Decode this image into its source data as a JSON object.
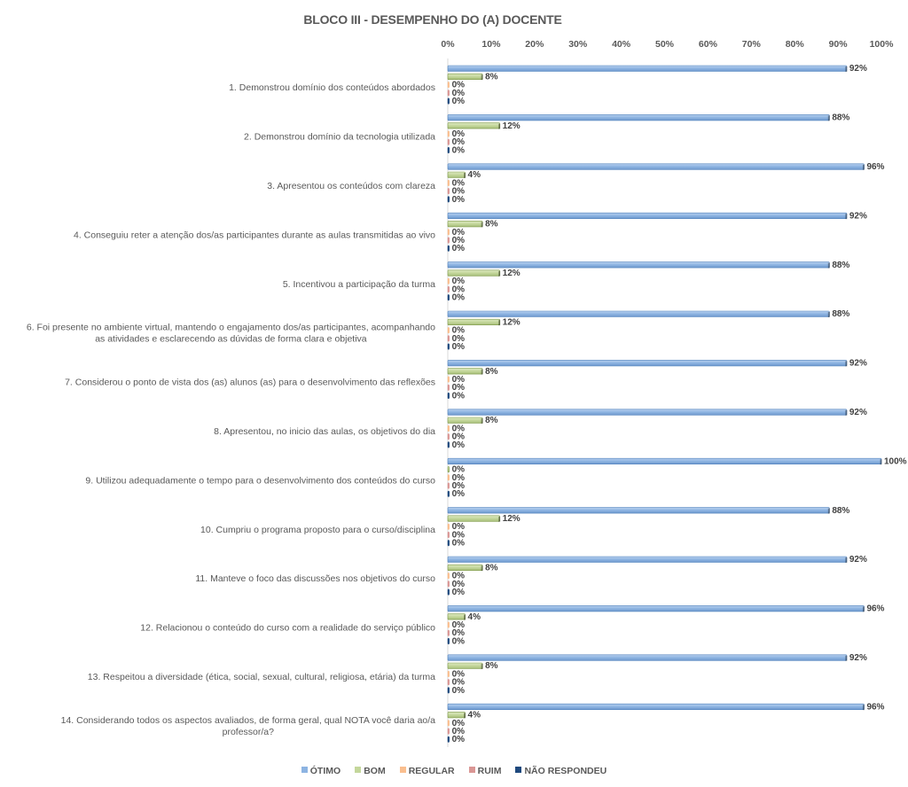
{
  "chart_data": {
    "type": "bar",
    "orientation": "horizontal",
    "title": "BLOCO III - DESEMPENHO DO (A) DOCENTE",
    "xlabel": "",
    "ylabel": "",
    "xlim": [
      0,
      100
    ],
    "x_ticks": [
      "0%",
      "10%",
      "20%",
      "30%",
      "40%",
      "50%",
      "60%",
      "70%",
      "80%",
      "90%",
      "100%"
    ],
    "x_axis_position": "top",
    "grid": false,
    "legend_position": "bottom",
    "categories": [
      "1. Demonstrou domínio dos conteúdos abordados",
      "2. Demonstrou domínio da tecnologia utilizada",
      "3. Apresentou os conteúdos com clareza",
      "4. Conseguiu reter a atenção dos/as participantes durante as aulas transmitidas ao vivo",
      "5. Incentivou a participação da turma",
      "6. Foi presente no ambiente virtual, mantendo o engajamento dos/as participantes, acompanhando as atividades e esclarecendo as dúvidas de forma clara e objetiva",
      "7. Considerou o ponto de vista dos (as) alunos (as) para o desenvolvimento das reflexões",
      "8. Apresentou, no inicio das aulas, os objetivos do dia",
      "9. Utilizou adequadamente o tempo para o desenvolvimento dos conteúdos do curso",
      "10. Cumpriu o programa proposto para o curso/disciplina",
      "11. Manteve o foco das discussões nos objetivos do curso",
      "12. Relacionou o conteúdo do curso com a realidade do serviço público",
      "13. Respeitou a diversidade (ética, social, sexual, cultural, religiosa, etária) da turma",
      "14. Considerando todos os aspectos avaliados, de forma geral, qual NOTA você daria ao/a professor/a?"
    ],
    "category_lines": [
      [
        "1. Demonstrou domínio dos conteúdos abordados"
      ],
      [
        "2. Demonstrou domínio da tecnologia utilizada"
      ],
      [
        "3. Apresentou os conteúdos com clareza"
      ],
      [
        "4. Conseguiu reter a atenção dos/as participantes durante as aulas transmitidas ao vivo"
      ],
      [
        "5. Incentivou a participação da turma"
      ],
      [
        "6. Foi presente no ambiente virtual, mantendo o engajamento dos/as participantes, acompanhando",
        "as atividades e esclarecendo as dúvidas de forma clara e objetiva"
      ],
      [
        "7. Considerou o ponto de vista dos (as) alunos (as) para o desenvolvimento das reflexões"
      ],
      [
        "8. Apresentou, no inicio das aulas, os objetivos do dia"
      ],
      [
        "9. Utilizou adequadamente o tempo para o desenvolvimento dos conteúdos do curso"
      ],
      [
        "10. Cumpriu o programa proposto para o curso/disciplina"
      ],
      [
        "11. Manteve o foco das discussões nos objetivos do curso"
      ],
      [
        "12. Relacionou o conteúdo do curso com a realidade do serviço público"
      ],
      [
        "13. Respeitou a diversidade (ética, social, sexual, cultural, religiosa, etária) da turma"
      ],
      [
        "14. Considerando todos os aspectos avaliados, de forma geral, qual NOTA você daria ao/a",
        "professor/a?"
      ]
    ],
    "series": [
      {
        "name": "ÓTIMO",
        "color": "#8DB4E2",
        "values": [
          92,
          88,
          96,
          92,
          88,
          88,
          92,
          92,
          100,
          88,
          92,
          96,
          92,
          96
        ]
      },
      {
        "name": "BOM",
        "color": "#C4D79B",
        "values": [
          8,
          12,
          4,
          8,
          12,
          12,
          8,
          8,
          0,
          12,
          8,
          4,
          8,
          4
        ]
      },
      {
        "name": "REGULAR",
        "color": "#FABF8F",
        "values": [
          0,
          0,
          0,
          0,
          0,
          0,
          0,
          0,
          0,
          0,
          0,
          0,
          0,
          0
        ]
      },
      {
        "name": "RUIM",
        "color": "#DA9694",
        "values": [
          0,
          0,
          0,
          0,
          0,
          0,
          0,
          0,
          0,
          0,
          0,
          0,
          0,
          0
        ]
      },
      {
        "name": "NÃO RESPONDEU",
        "color": "#1F497D",
        "values": [
          0,
          0,
          0,
          0,
          0,
          0,
          0,
          0,
          0,
          0,
          0,
          0,
          0,
          0
        ]
      }
    ],
    "value_format": "{v}%"
  }
}
